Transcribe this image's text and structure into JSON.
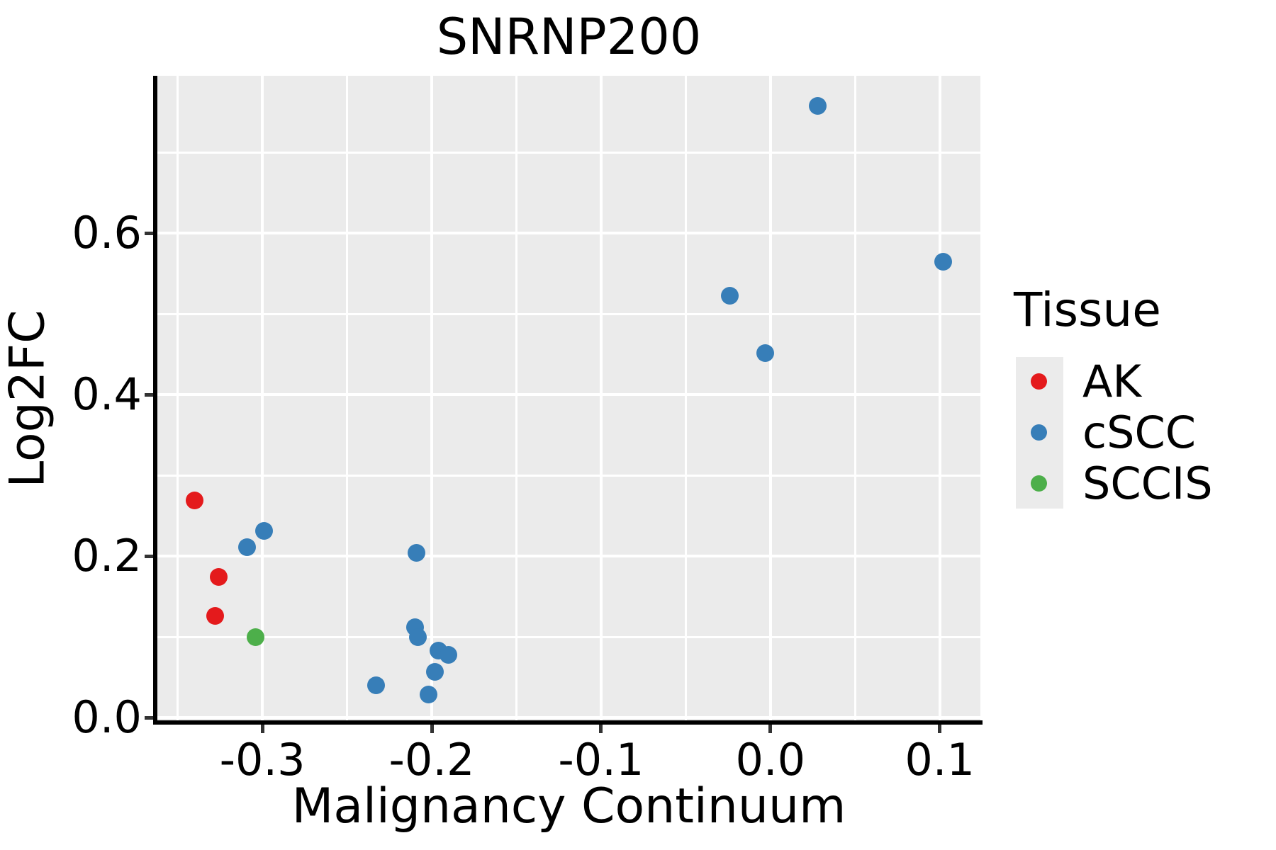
{
  "title": "SNRNP200",
  "axes": {
    "x": {
      "label": "Malignancy Continuum",
      "tick_labels": [
        "-0.3",
        "-0.2",
        "-0.1",
        "0.0",
        "0.1"
      ]
    },
    "y": {
      "label": "Log2FC",
      "tick_labels": [
        "0.0",
        "0.2",
        "0.4",
        "0.6"
      ]
    }
  },
  "legend": {
    "title": "Tissue",
    "entries": [
      {
        "label": "AK",
        "color": "#E41A1C"
      },
      {
        "label": "cSCC",
        "color": "#377EB8"
      },
      {
        "label": "SCCIS",
        "color": "#4DAF4A"
      }
    ]
  },
  "colors": {
    "panel_background": "#EBEBEB",
    "gridline": "#FFFFFF",
    "axis_line": "#000000",
    "tick_mark": "#333333",
    "ak_red": "#E41A1C",
    "cscc_blue": "#377EB8",
    "sccis_green": "#4DAF4A"
  },
  "chart_data": {
    "type": "scatter",
    "title": "SNRNP200",
    "xlabel": "Malignancy Continuum",
    "ylabel": "Log2FC",
    "xlim": [
      -0.362,
      0.124
    ],
    "ylim": [
      -0.005,
      0.795
    ],
    "x_major_ticks": [
      -0.3,
      -0.2,
      -0.1,
      0.0,
      0.1
    ],
    "y_major_ticks": [
      0.0,
      0.2,
      0.4,
      0.6
    ],
    "x_minor_step": 0.05,
    "y_minor_step": 0.1,
    "grid": true,
    "legend_position": "right",
    "series": [
      {
        "name": "AK",
        "color": "#E41A1C",
        "points": [
          [
            -0.34,
            0.269
          ],
          [
            -0.326,
            0.174
          ],
          [
            -0.328,
            0.126
          ]
        ]
      },
      {
        "name": "cSCC",
        "color": "#377EB8",
        "points": [
          [
            0.028,
            0.758
          ],
          [
            0.102,
            0.565
          ],
          [
            -0.024,
            0.523
          ],
          [
            -0.003,
            0.452
          ],
          [
            -0.299,
            0.231
          ],
          [
            -0.309,
            0.211
          ],
          [
            -0.209,
            0.204
          ],
          [
            -0.21,
            0.112
          ],
          [
            -0.208,
            0.1
          ],
          [
            -0.196,
            0.083
          ],
          [
            -0.19,
            0.078
          ],
          [
            -0.198,
            0.057
          ],
          [
            -0.233,
            0.04
          ],
          [
            -0.202,
            0.029
          ]
        ]
      },
      {
        "name": "SCCIS",
        "color": "#4DAF4A",
        "points": [
          [
            -0.304,
            0.1
          ]
        ]
      }
    ]
  }
}
